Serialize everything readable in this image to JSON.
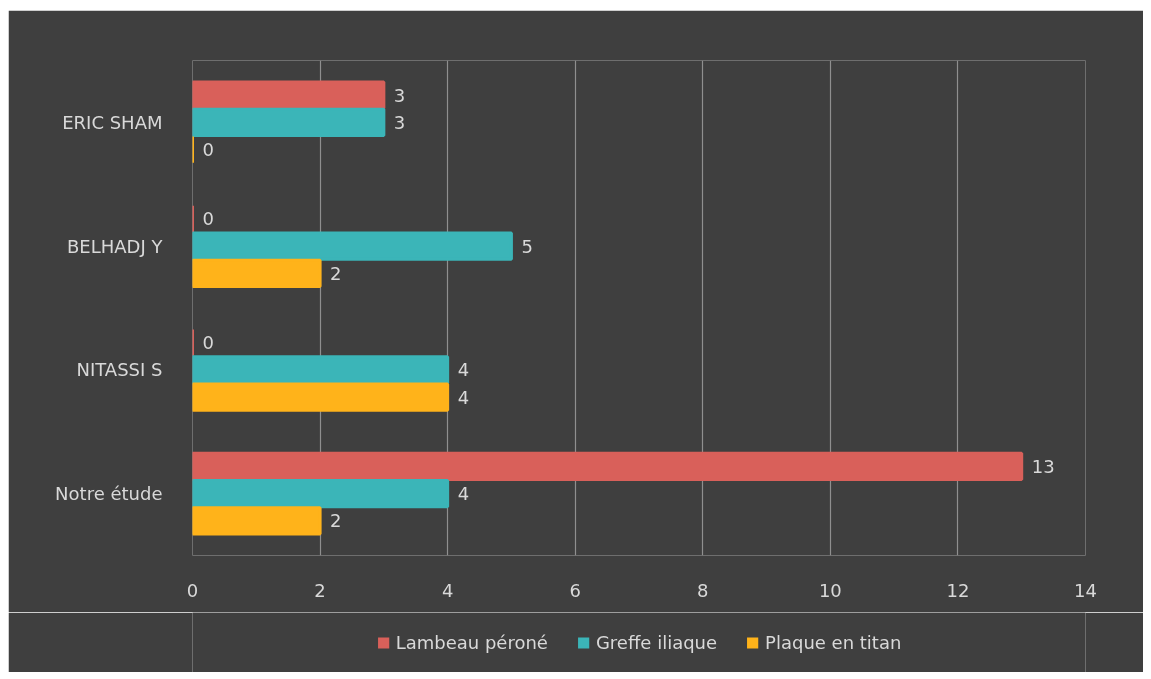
{
  "chart_data": {
    "type": "bar",
    "orientation": "horizontal",
    "categories": [
      "ERIC SHAM",
      "BELHADJ Y",
      "NITASSI S",
      "Notre étude"
    ],
    "series": [
      {
        "name": "Lambeau péroné",
        "color": "#d9605a",
        "values": [
          3,
          0,
          0,
          13
        ]
      },
      {
        "name": "Greffe iliaque",
        "color": "#3bb5b8",
        "values": [
          3,
          5,
          4,
          4
        ]
      },
      {
        "name": "Plaque en titan",
        "color": "#ffb31a",
        "values": [
          0,
          2,
          4,
          2
        ]
      }
    ],
    "xlim": [
      0,
      14
    ],
    "xticks": [
      0,
      2,
      4,
      6,
      8,
      10,
      12,
      14
    ],
    "grid": "x",
    "legend": "bottom",
    "data_labels": true
  }
}
